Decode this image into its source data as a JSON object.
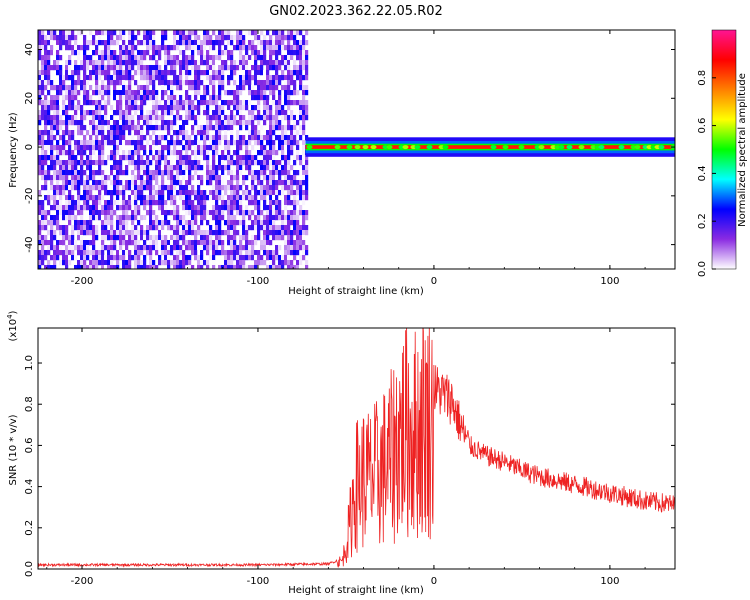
{
  "title": "GN02.2023.362.22.05.R02",
  "chart_data": [
    {
      "type": "heatmap",
      "xlabel": "Height of straight line (km)",
      "ylabel": "Frequency (Hz)",
      "xlim": [
        -225,
        137
      ],
      "ylim": [
        -50,
        48
      ],
      "x_ticks": [
        -200,
        -100,
        0,
        100
      ],
      "y_ticks": [
        -40,
        -20,
        0,
        20,
        40
      ],
      "colorbar": {
        "label": "Normalized spectral amplitude",
        "range": [
          0.0,
          1.0
        ],
        "ticks": [
          "0.0",
          "0.2",
          "0.4",
          "0.6",
          "0.8"
        ],
        "colors": [
          "#ffffff",
          "#8a2be2",
          "#0000ff",
          "#00ffff",
          "#00ff00",
          "#ffff00",
          "#ff8000",
          "#ff0000",
          "#ff1493"
        ]
      },
      "noise_region_x": [
        -225,
        -73
      ],
      "noise_amplitude_range": [
        0.0,
        0.25
      ],
      "signal_band": {
        "x_start": -73,
        "x_end": 137,
        "frequency_center": 0,
        "frequency_halfwidth": 2.5,
        "core_amplitude": 0.85
      }
    },
    {
      "type": "line",
      "xlabel": "Height of straight line (km)",
      "ylabel": "SNR (10 * v/v)",
      "y_multiplier": "(x10",
      "y_multiplier_exp": "4",
      "y_multiplier_close": ")",
      "xlim": [
        -225,
        137
      ],
      "ylim": [
        0,
        1.17
      ],
      "x_ticks": [
        -200,
        -100,
        0,
        100
      ],
      "y_ticks": [
        "0.0",
        "0.2",
        "0.4",
        "0.6",
        "0.8",
        "1.0"
      ],
      "line_color": "#ee2222",
      "series": [
        {
          "x": [
            -225,
            -150,
            -100,
            -60,
            -52,
            -48,
            -45,
            -40,
            -35,
            -30,
            -25,
            -20,
            -15,
            -10,
            -5,
            0,
            5,
            10,
            15,
            20,
            30,
            40,
            50,
            60,
            70,
            80,
            90,
            100,
            110,
            120,
            130,
            137
          ],
          "values": [
            0.02,
            0.02,
            0.02,
            0.025,
            0.05,
            0.25,
            0.5,
            0.55,
            0.55,
            0.6,
            0.65,
            0.8,
            0.85,
            0.82,
            0.9,
            0.88,
            0.85,
            0.82,
            0.7,
            0.6,
            0.55,
            0.52,
            0.48,
            0.45,
            0.43,
            0.41,
            0.39,
            0.37,
            0.35,
            0.33,
            0.32,
            0.31
          ]
        }
      ]
    }
  ]
}
